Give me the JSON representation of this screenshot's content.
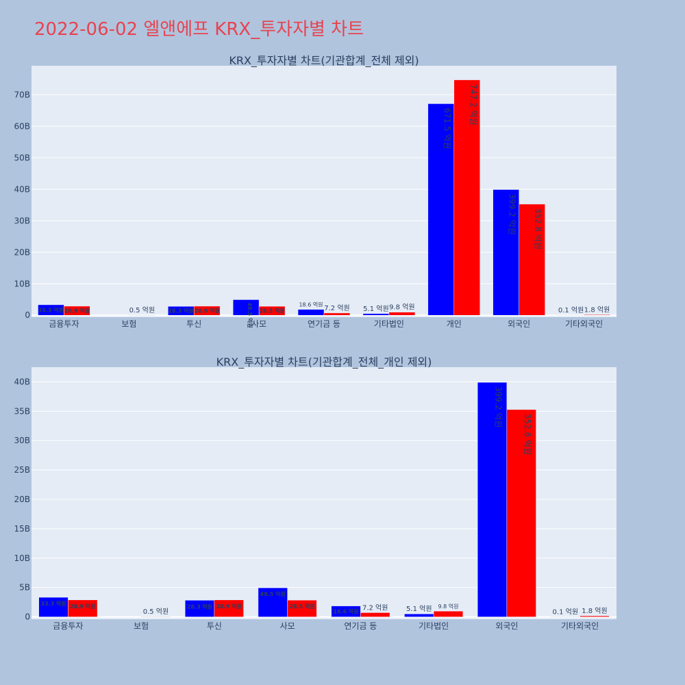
{
  "page": {
    "title": "2022-06-02 엘앤에프 KRX_투자자별 차트"
  },
  "colors": {
    "buy": "#0000ff",
    "sell": "#ff0000",
    "plot_bg": "#e5ecf6",
    "page_bg": "#b0c4de",
    "title": "#e8434f"
  },
  "chart_data": [
    {
      "type": "bar",
      "title": "KRX_투자자별 차트(기관합계_전체 제외)",
      "categories": [
        "금융투자",
        "보험",
        "투신",
        "사모",
        "연기금 등",
        "기타법인",
        "개인",
        "외국인",
        "기타외국인"
      ],
      "series": [
        {
          "values": [
            3.33,
            0.0,
            2.83,
            4.95,
            1.86,
            0.51,
            67.15,
            39.92,
            0.01
          ],
          "labels": [
            "33.3 억원",
            "",
            "28.3 억원",
            "49.5 억원",
            "18.6 억원",
            "5.1 억원",
            "671.5 억원",
            "399.2 억원",
            "0.1 억원"
          ]
        },
        {
          "values": [
            2.89,
            0.05,
            2.89,
            2.85,
            0.72,
            0.98,
            74.72,
            35.28,
            0.18
          ],
          "labels": [
            "28.9 억원",
            "0.5 억원",
            "28.9 억원",
            "28.5 억원",
            "7.2 억원",
            "9.8 억원",
            "747.2 억원",
            "352.8 억원",
            "1.8 억원"
          ]
        }
      ],
      "yticks": [
        "0",
        "10B",
        "20B",
        "30B",
        "40B",
        "50B",
        "60B",
        "70B"
      ],
      "ylim": [
        -0.6,
        79.2
      ],
      "grid": true
    },
    {
      "type": "bar",
      "title": "KRX_투자자별 차트(기관합계_전체_개인 제외)",
      "categories": [
        "금융투자",
        "보험",
        "투신",
        "사모",
        "연기금 등",
        "기타법인",
        "외국인",
        "기타외국인"
      ],
      "series": [
        {
          "values": [
            3.33,
            0.0,
            2.83,
            4.95,
            1.86,
            0.51,
            39.92,
            0.01
          ],
          "labels": [
            "33.3 억원",
            "",
            "28.3 억원",
            "49.5 억원",
            "18.6 억원",
            "5.1 억원",
            "399.2 억원",
            "0.1 억원"
          ]
        },
        {
          "values": [
            2.89,
            0.05,
            2.89,
            2.85,
            0.72,
            0.98,
            35.28,
            0.18
          ],
          "labels": [
            "28.9 억원",
            "0.5 억원",
            "28.9 억원",
            "28.5 억원",
            "7.2 억원",
            "9.8 억원",
            "352.8 억원",
            "1.8 억원"
          ]
        }
      ],
      "yticks": [
        "0",
        "5B",
        "10B",
        "15B",
        "20B",
        "25B",
        "30B",
        "35B",
        "40B"
      ],
      "ylim": [
        -0.4,
        42.5
      ],
      "grid": true
    }
  ]
}
